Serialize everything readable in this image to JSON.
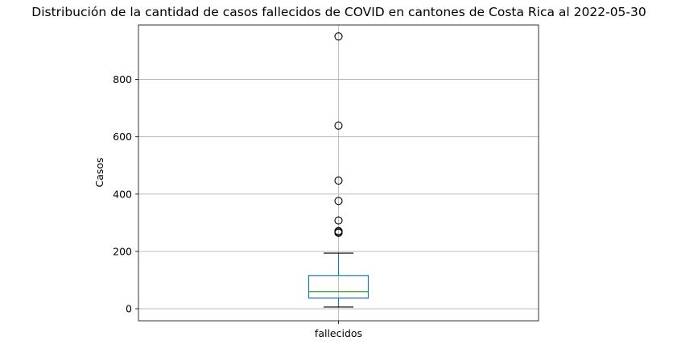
{
  "chart_data": {
    "type": "boxplot",
    "title": "Distribución de la cantidad de casos fallecidos de COVID en cantones de Costa Rica al 2022-05-30",
    "xlabel": "",
    "ylabel": "Casos",
    "categories": [
      "fallecidos"
    ],
    "ylim": [
      -42,
      990
    ],
    "yticks": [
      0,
      200,
      400,
      600,
      800
    ],
    "grid": true,
    "box": {
      "whisker_low": 6,
      "q1": 37,
      "median": 60,
      "q3": 116,
      "whisker_high": 194
    },
    "outliers": [
      265,
      269,
      271,
      308,
      376,
      447,
      639,
      950
    ],
    "colors": {
      "box": "#1f77b4",
      "median": "#2ca02c",
      "whisker": "#000000",
      "grid": "#b0b0b0"
    }
  }
}
